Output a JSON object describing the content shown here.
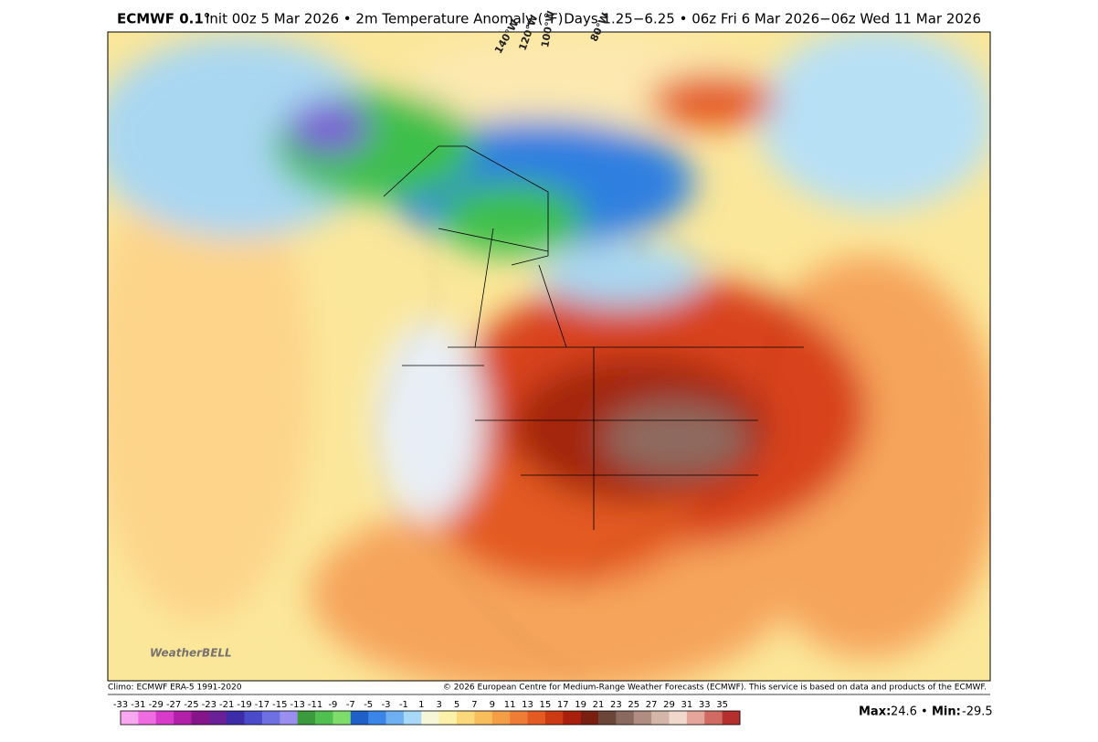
{
  "header": {
    "model": "ECMWF 0.1°",
    "subtitle": "Init 00z 5 Mar 2026 • 2m Temperature Anomaly (°F)",
    "valid": "Days 1.25−6.25 • 06z Fri 6 Mar 2026−06z Wed 11 Mar 2026"
  },
  "map": {
    "graticule_labels": [
      "140°W",
      "120°W",
      "100°W",
      "80°W"
    ],
    "logo": "WeatherBELL"
  },
  "footer": {
    "climo": "Climo: ECMWF ERA-5 1991-2020",
    "credit": "© 2026 European Centre for Medium-Range Weather Forecasts (ECMWF). This service is based on data and products of the ECMWF."
  },
  "colorbar": {
    "labels": [
      -33,
      -31,
      -29,
      -27,
      -25,
      -23,
      -21,
      -19,
      -17,
      -15,
      -13,
      -11,
      -9,
      -7,
      -5,
      -3,
      -1,
      1,
      3,
      5,
      7,
      9,
      11,
      13,
      15,
      17,
      19,
      21,
      23,
      25,
      27,
      29,
      31,
      33,
      35
    ]
  },
  "stats": {
    "max_label": "Max:",
    "max": 24.6,
    "separator": "•",
    "min_label": "Min:",
    "min": -29.5
  }
}
